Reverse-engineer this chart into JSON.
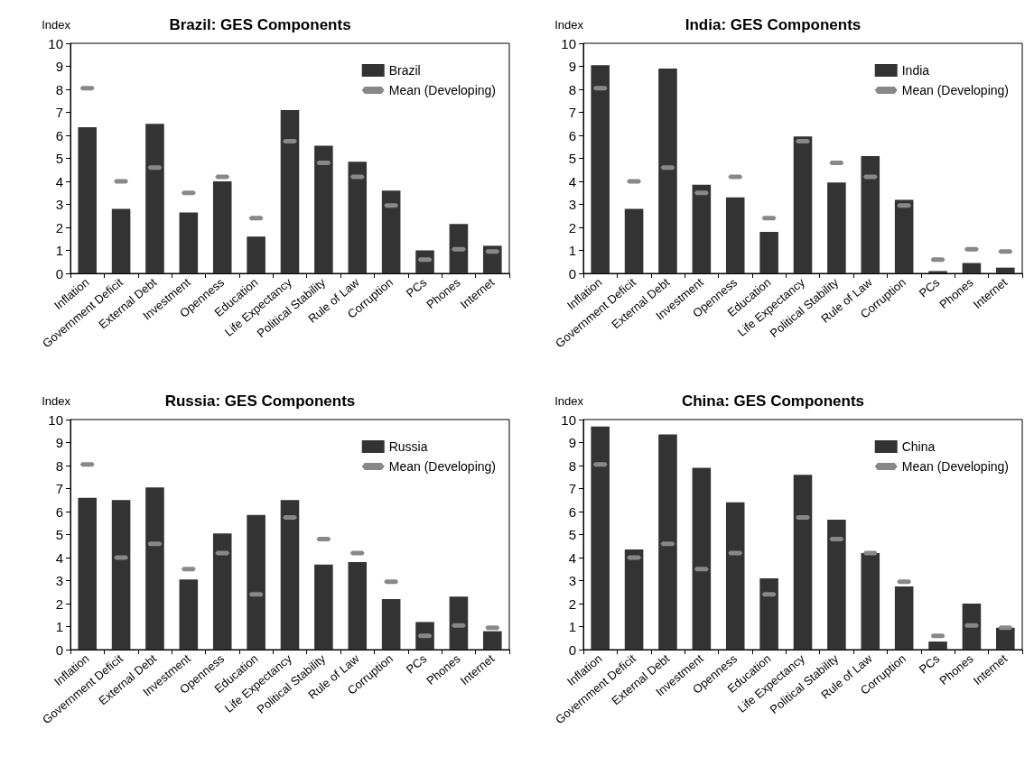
{
  "chart_data": [
    {
      "type": "bar",
      "title": "Brazil: GES Components",
      "ylabel": "Index",
      "categories": [
        "Inflation",
        "Government Deficit",
        "External Debt",
        "Investment",
        "Openness",
        "Education",
        "Life Expectancy",
        "Political Stability",
        "Rule of Law",
        "Corruption",
        "PCs",
        "Phones",
        "Internet"
      ],
      "ylim": [
        0,
        10
      ],
      "yticks": [
        0,
        1,
        2,
        3,
        4,
        5,
        6,
        7,
        8,
        9,
        10
      ],
      "grid": false,
      "legend": "top right",
      "series": [
        {
          "name": "Brazil",
          "color": "#333333",
          "values": [
            6.35,
            2.8,
            6.5,
            2.65,
            4.0,
            1.6,
            7.1,
            5.55,
            4.85,
            3.6,
            1.0,
            2.15,
            1.2
          ]
        },
        {
          "name": "Mean (Developing)",
          "type": "scatter",
          "color": "#888888",
          "values": [
            8.05,
            4.0,
            4.6,
            3.5,
            4.2,
            2.4,
            5.75,
            4.8,
            4.2,
            2.95,
            0.6,
            1.05,
            0.95
          ]
        }
      ]
    },
    {
      "type": "bar",
      "title": "India: GES Components",
      "ylabel": "Index",
      "categories": [
        "Inflation",
        "Government Deficit",
        "External Debt",
        "Investment",
        "Openness",
        "Education",
        "Life Expectancy",
        "Political Stability",
        "Rule of Law",
        "Corruption",
        "PCs",
        "Phones",
        "Internet"
      ],
      "ylim": [
        0,
        10
      ],
      "yticks": [
        0,
        1,
        2,
        3,
        4,
        5,
        6,
        7,
        8,
        9,
        10
      ],
      "grid": false,
      "legend": "top right",
      "series": [
        {
          "name": "India",
          "color": "#333333",
          "values": [
            9.05,
            2.8,
            8.9,
            3.85,
            3.3,
            1.8,
            5.95,
            3.95,
            5.1,
            3.2,
            0.1,
            0.45,
            0.25
          ]
        },
        {
          "name": "Mean (Developing)",
          "type": "scatter",
          "color": "#888888",
          "values": [
            8.05,
            4.0,
            4.6,
            3.5,
            4.2,
            2.4,
            5.75,
            4.8,
            4.2,
            2.95,
            0.6,
            1.05,
            0.95
          ]
        }
      ]
    },
    {
      "type": "bar",
      "title": "Russia: GES Components",
      "ylabel": "Index",
      "categories": [
        "Inflation",
        "Government Deficit",
        "External Debt",
        "Investment",
        "Openness",
        "Education",
        "Life Expectancy",
        "Political Stability",
        "Rule of Law",
        "Corruption",
        "PCs",
        "Phones",
        "Internet"
      ],
      "ylim": [
        0,
        10
      ],
      "yticks": [
        0,
        1,
        2,
        3,
        4,
        5,
        6,
        7,
        8,
        9,
        10
      ],
      "grid": false,
      "legend": "top right",
      "series": [
        {
          "name": "Russia",
          "color": "#333333",
          "values": [
            6.6,
            6.5,
            7.05,
            3.05,
            5.05,
            5.85,
            6.5,
            3.7,
            3.8,
            2.2,
            1.2,
            2.3,
            0.8
          ]
        },
        {
          "name": "Mean (Developing)",
          "type": "scatter",
          "color": "#888888",
          "values": [
            8.05,
            4.0,
            4.6,
            3.5,
            4.2,
            2.4,
            5.75,
            4.8,
            4.2,
            2.95,
            0.6,
            1.05,
            0.95
          ]
        }
      ]
    },
    {
      "type": "bar",
      "title": "China: GES Components",
      "ylabel": "Index",
      "categories": [
        "Inflation",
        "Government Deficit",
        "External Debt",
        "Investment",
        "Openness",
        "Education",
        "Life Expectancy",
        "Political Stability",
        "Rule of Law",
        "Corruption",
        "PCs",
        "Phones",
        "Internet"
      ],
      "ylim": [
        0,
        10
      ],
      "yticks": [
        0,
        1,
        2,
        3,
        4,
        5,
        6,
        7,
        8,
        9,
        10
      ],
      "grid": false,
      "legend": "top right",
      "series": [
        {
          "name": "China",
          "color": "#333333",
          "values": [
            9.7,
            4.35,
            9.35,
            7.9,
            6.4,
            3.1,
            7.6,
            5.65,
            4.2,
            2.75,
            0.35,
            2.0,
            0.95
          ]
        },
        {
          "name": "Mean (Developing)",
          "type": "scatter",
          "color": "#888888",
          "values": [
            8.05,
            4.0,
            4.6,
            3.5,
            4.2,
            2.4,
            5.75,
            4.8,
            4.2,
            2.95,
            0.6,
            1.05,
            0.95
          ]
        }
      ]
    }
  ]
}
